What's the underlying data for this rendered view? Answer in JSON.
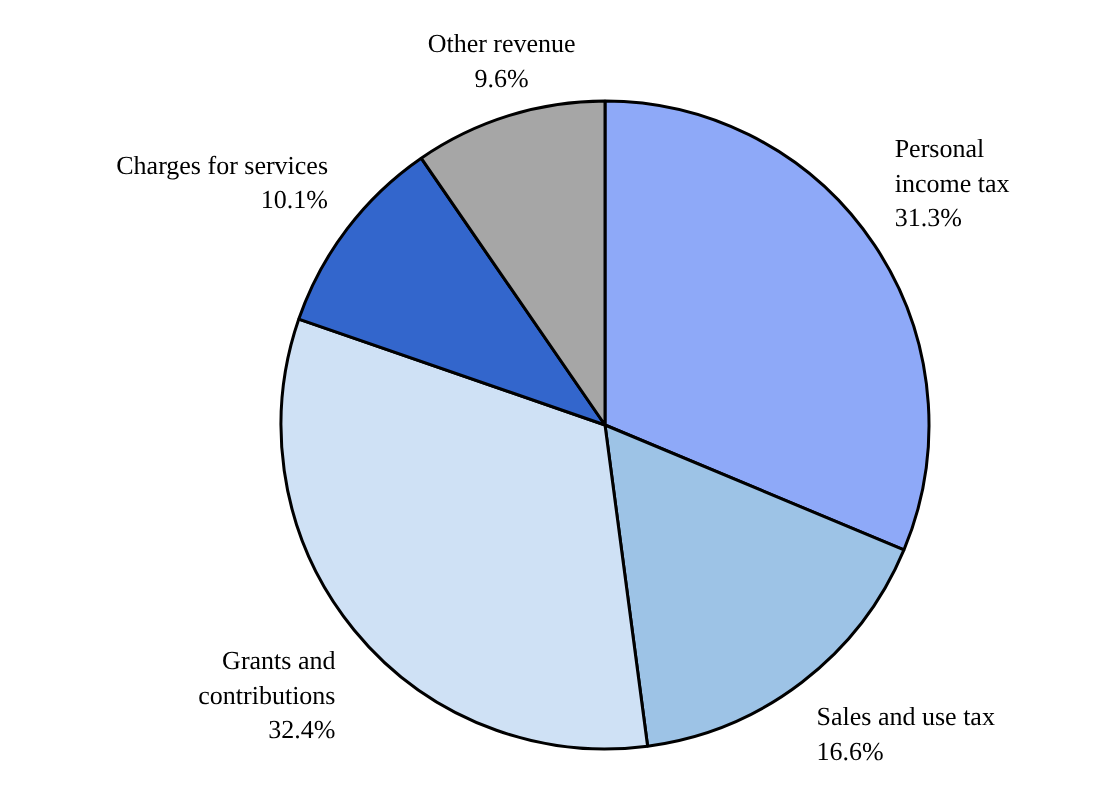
{
  "chart_data": {
    "type": "pie",
    "categories": [
      "Personal income tax",
      "Sales and use tax",
      "Grants and contributions",
      "Charges for services",
      "Other revenue"
    ],
    "values": [
      31.3,
      16.6,
      32.4,
      10.1,
      9.6
    ],
    "colors": [
      "#8ea9f8",
      "#9dc3e6",
      "#cfe1f5",
      "#3366cc",
      "#a6a6a6"
    ],
    "value_labels": [
      "31.3%",
      "16.6%",
      "32.4%",
      "10.1%",
      "9.6%"
    ]
  }
}
